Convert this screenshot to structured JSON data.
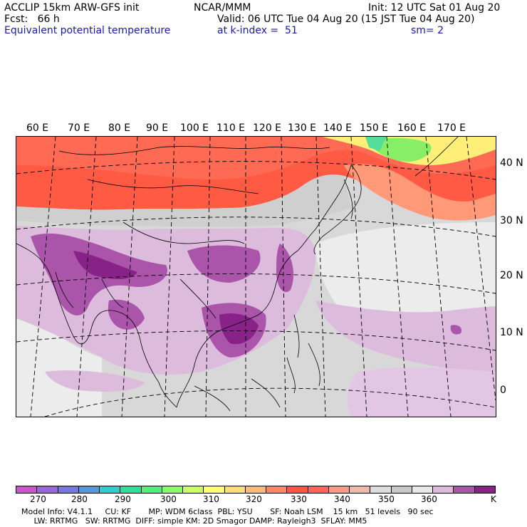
{
  "header": {
    "model": "ACCLIP 15km ARW-GFS init",
    "center": "NCAR/MMM",
    "init": "Init: 12 UTC Sat 01 Aug 20",
    "fcst": "Fcst:   66 h",
    "valid": "Valid: 06 UTC Tue 04 Aug 20 (15 JST Tue 04 Aug 20)",
    "field": "Equivalent potential temperature",
    "level": "at k-index =  51",
    "smooth": "sm= 2"
  },
  "map": {
    "lon_labels": [
      "60 E",
      "70 E",
      "80 E",
      "90 E",
      "100 E",
      "110 E",
      "120 E",
      "130 E",
      "140 E",
      "150 E",
      "160 E",
      "170 E"
    ],
    "lat_labels": [
      "40 N",
      "30 N",
      "20 N",
      "10 N",
      "0"
    ]
  },
  "colorbar": {
    "unit": "K",
    "labels": [
      "270",
      "280",
      "290",
      "300",
      "310",
      "320",
      "330",
      "340",
      "350",
      "360"
    ],
    "colors": [
      "#cc55cc",
      "#9966dd",
      "#7777dd",
      "#5599dd",
      "#33cccc",
      "#33dd99",
      "#55ee77",
      "#88ff66",
      "#ccff66",
      "#ffff77",
      "#ffdd77",
      "#ffbb77",
      "#ff8866",
      "#ff5544",
      "#ff6655",
      "#ff9988",
      "#eebbaa",
      "#dddddd",
      "#c8c8c8",
      "#e8e8e8",
      "#ddbbdd",
      "#aa55aa",
      "#882288"
    ]
  },
  "footer": {
    "line1": "Model Info: V4.1.1     CU: KF       MP: WDM 6class  PBL: YSU       SF: Noah LSM    15 km   51 levels   90 sec",
    "line2": "     LW: RRTMG   SW: RRTMG  DIFF: simple KM: 2D Smagor DAMP: Rayleigh3  SFLAY: MM5"
  }
}
